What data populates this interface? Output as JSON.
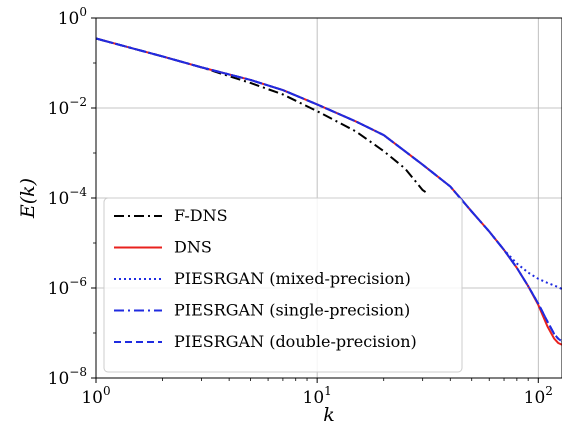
{
  "chart_data": {
    "type": "line",
    "xscale": "log",
    "yscale": "log",
    "xlim": [
      1,
      128
    ],
    "ylim": [
      1e-08,
      1
    ],
    "xlabel": "E_k_x",
    "ylabel": "E(k)",
    "xlabel_text": "k",
    "grid": true,
    "legend_position": "lower-left",
    "xticks": [
      {
        "value": 1,
        "base": "10",
        "exp": "0"
      },
      {
        "value": 10,
        "base": "10",
        "exp": "1"
      },
      {
        "value": 100,
        "base": "10",
        "exp": "2"
      }
    ],
    "yticks": [
      {
        "value": 1,
        "base": "10",
        "exp": "0"
      },
      {
        "value": 0.01,
        "base": "10",
        "exp": "−2"
      },
      {
        "value": 0.0001,
        "base": "10",
        "exp": "−4"
      },
      {
        "value": 1e-06,
        "base": "10",
        "exp": "−6"
      },
      {
        "value": 1e-08,
        "base": "10",
        "exp": "−8"
      }
    ],
    "series": [
      {
        "name": "F-DNS",
        "color": "#000000",
        "dash": "dashdot",
        "x": [
          1,
          2,
          3,
          5,
          7,
          10,
          15,
          20,
          25,
          30,
          32
        ],
        "y": [
          0.35,
          0.14,
          0.08,
          0.036,
          0.02,
          0.0085,
          0.003,
          0.0011,
          0.00045,
          0.00015,
          0.00012
        ]
      },
      {
        "name": "DNS",
        "color": "#e8211e",
        "dash": "solid",
        "x": [
          1,
          2,
          3,
          5,
          7,
          10,
          15,
          20,
          30,
          40,
          50,
          60,
          70,
          80,
          90,
          100,
          110,
          118,
          123,
          128
        ],
        "y": [
          0.35,
          0.14,
          0.08,
          0.042,
          0.025,
          0.012,
          0.005,
          0.0025,
          0.00055,
          0.00018,
          5e-05,
          1.8e-05,
          7e-06,
          2.8e-06,
          1.1e-06,
          4.2e-07,
          1.4e-07,
          7.5e-08,
          6e-08,
          5.5e-08
        ]
      },
      {
        "name": "PIESRGAN (mixed-precision)",
        "color": "#1f2be0",
        "dash": "dotted",
        "x": [
          1,
          2,
          3,
          5,
          7,
          10,
          15,
          20,
          30,
          40,
          50,
          60,
          70,
          80,
          90,
          100,
          110,
          120,
          128
        ],
        "y": [
          0.35,
          0.14,
          0.08,
          0.042,
          0.025,
          0.012,
          0.005,
          0.0025,
          0.00055,
          0.00018,
          5e-05,
          1.8e-05,
          7e-06,
          3.5e-06,
          2.2e-06,
          1.6e-06,
          1.3e-06,
          1.1e-06,
          9.5e-07
        ]
      },
      {
        "name": "PIESRGAN (single-precision)",
        "color": "#1f2be0",
        "dash": "dashdot",
        "x": [
          1,
          2,
          3,
          5,
          7,
          10,
          15,
          20,
          30,
          40,
          50,
          60,
          70,
          80,
          90,
          100,
          110,
          118,
          123,
          128
        ],
        "y": [
          0.35,
          0.14,
          0.08,
          0.042,
          0.025,
          0.012,
          0.005,
          0.0025,
          0.00055,
          0.00018,
          5e-05,
          1.8e-05,
          7e-06,
          2.8e-06,
          1.1e-06,
          4.5e-07,
          1.8e-07,
          9.5e-08,
          7.5e-08,
          6.5e-08
        ]
      },
      {
        "name": "PIESRGAN (double-precision)",
        "color": "#1f2be0",
        "dash": "dashed",
        "x": [
          1,
          2,
          3,
          5,
          7,
          10,
          15,
          20,
          30,
          40,
          50,
          60,
          70,
          80,
          90,
          100,
          110,
          118,
          123,
          128
        ],
        "y": [
          0.35,
          0.14,
          0.08,
          0.042,
          0.025,
          0.012,
          0.005,
          0.0025,
          0.00055,
          0.00018,
          5e-05,
          1.8e-05,
          7e-06,
          2.8e-06,
          1.1e-06,
          4.5e-07,
          1.8e-07,
          9.5e-08,
          7.5e-08,
          6.5e-08
        ]
      }
    ]
  }
}
